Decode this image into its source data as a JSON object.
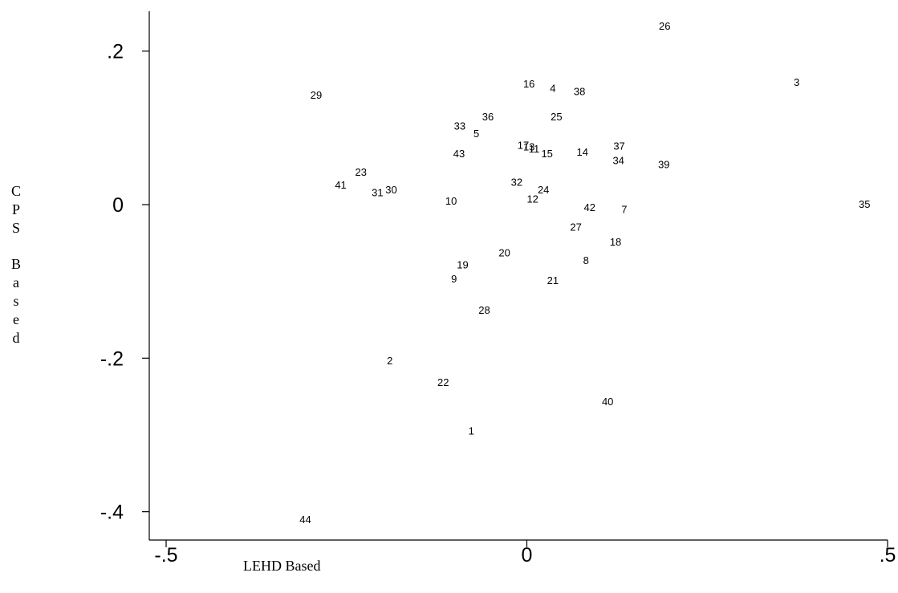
{
  "chart_data": {
    "type": "scatter",
    "xlabel": "LEHD Based",
    "ylabel": "CPS Based",
    "xlim": [
      -0.5,
      0.5
    ],
    "ylim": [
      -0.4,
      0.2
    ],
    "x_ticks": [
      {
        "value": -0.5,
        "label": "-.5"
      },
      {
        "value": 0,
        "label": "0"
      },
      {
        "value": 0.5,
        "label": ".5"
      }
    ],
    "y_ticks": [
      {
        "value": 0.2,
        "label": ".2"
      },
      {
        "value": 0,
        "label": "0"
      },
      {
        "value": -0.2,
        "label": "-.2"
      },
      {
        "value": -0.4,
        "label": "-.4"
      }
    ],
    "grid": false,
    "marker": "label-only",
    "points": [
      {
        "label": "1",
        "x": -0.077,
        "y": -0.294
      },
      {
        "label": "2",
        "x": -0.19,
        "y": -0.203
      },
      {
        "label": "3",
        "x": 0.374,
        "y": 0.16
      },
      {
        "label": "4",
        "x": 0.036,
        "y": 0.152
      },
      {
        "label": "5",
        "x": -0.07,
        "y": 0.093
      },
      {
        "label": "7",
        "x": 0.135,
        "y": -0.006
      },
      {
        "label": "8",
        "x": 0.082,
        "y": -0.072
      },
      {
        "label": "9",
        "x": -0.101,
        "y": -0.096
      },
      {
        "label": "10",
        "x": -0.105,
        "y": 0.005
      },
      {
        "label": "11",
        "x": 0.01,
        "y": 0.073
      },
      {
        "label": "12",
        "x": 0.008,
        "y": 0.008
      },
      {
        "label": "13",
        "x": 0.003,
        "y": 0.076
      },
      {
        "label": "14",
        "x": 0.077,
        "y": 0.069
      },
      {
        "label": "15",
        "x": 0.028,
        "y": 0.067
      },
      {
        "label": "16",
        "x": 0.003,
        "y": 0.158
      },
      {
        "label": "17",
        "x": -0.005,
        "y": 0.078
      },
      {
        "label": "18",
        "x": 0.123,
        "y": -0.048
      },
      {
        "label": "19",
        "x": -0.089,
        "y": -0.078
      },
      {
        "label": "20",
        "x": -0.031,
        "y": -0.062
      },
      {
        "label": "21",
        "x": 0.036,
        "y": -0.098
      },
      {
        "label": "22",
        "x": -0.116,
        "y": -0.231
      },
      {
        "label": "23",
        "x": -0.23,
        "y": 0.043
      },
      {
        "label": "24",
        "x": 0.023,
        "y": 0.02
      },
      {
        "label": "25",
        "x": 0.041,
        "y": 0.115
      },
      {
        "label": "26",
        "x": 0.191,
        "y": 0.233
      },
      {
        "label": "27",
        "x": 0.068,
        "y": -0.029
      },
      {
        "label": "28",
        "x": -0.059,
        "y": -0.137
      },
      {
        "label": "29",
        "x": -0.292,
        "y": 0.143
      },
      {
        "label": "30",
        "x": -0.188,
        "y": 0.02
      },
      {
        "label": "31",
        "x": -0.207,
        "y": 0.016
      },
      {
        "label": "32",
        "x": -0.014,
        "y": 0.03
      },
      {
        "label": "33",
        "x": -0.093,
        "y": 0.103
      },
      {
        "label": "34",
        "x": 0.127,
        "y": 0.058
      },
      {
        "label": "35",
        "x": 0.468,
        "y": 0.001
      },
      {
        "label": "36",
        "x": -0.054,
        "y": 0.115
      },
      {
        "label": "37",
        "x": 0.128,
        "y": 0.077
      },
      {
        "label": "38",
        "x": 0.073,
        "y": 0.148
      },
      {
        "label": "39",
        "x": 0.19,
        "y": 0.053
      },
      {
        "label": "40",
        "x": 0.112,
        "y": -0.256
      },
      {
        "label": "41",
        "x": -0.258,
        "y": 0.026
      },
      {
        "label": "42",
        "x": 0.087,
        "y": -0.003
      },
      {
        "label": "43",
        "x": -0.094,
        "y": 0.067
      },
      {
        "label": "44",
        "x": -0.307,
        "y": -0.41
      }
    ]
  }
}
